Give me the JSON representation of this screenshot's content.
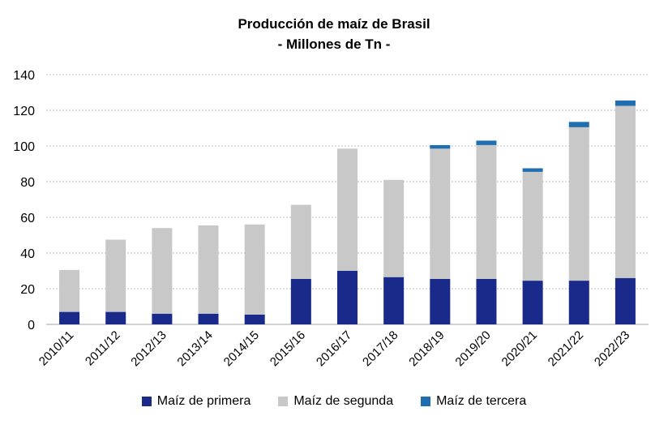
{
  "chart_data": {
    "type": "bar",
    "stacked": true,
    "title": "Producción de maíz de Brasil",
    "subtitle": "- Millones de Tn -",
    "categories": [
      "2010/11",
      "2011/12",
      "2012/13",
      "2013/14",
      "2014/15",
      "2015/16",
      "2016/17",
      "2017/18",
      "2018/19",
      "2019/20",
      "2020/21",
      "2021/22",
      "2022/23"
    ],
    "series": [
      {
        "name": "Maíz de primera",
        "color": "#1a2a8a",
        "values": [
          7,
          7,
          6,
          6,
          5.5,
          25.5,
          30,
          26.5,
          25.5,
          25.5,
          24.5,
          24.5,
          26
        ]
      },
      {
        "name": "Maíz de segunda",
        "color": "#c8c8c8",
        "values": [
          23.5,
          40.5,
          48,
          49.5,
          50.5,
          41.5,
          68.5,
          54.5,
          73,
          75,
          61,
          86,
          96.5
        ]
      },
      {
        "name": "Maíz de tercera",
        "color": "#1f6eb0",
        "values": [
          0,
          0,
          0,
          0,
          0,
          0,
          0,
          0,
          2,
          2.5,
          2,
          3,
          3
        ]
      }
    ],
    "ylim": [
      0,
      140
    ],
    "yticks": [
      0,
      20,
      40,
      60,
      80,
      100,
      120,
      140
    ],
    "grid": true,
    "legend_position": "bottom"
  }
}
